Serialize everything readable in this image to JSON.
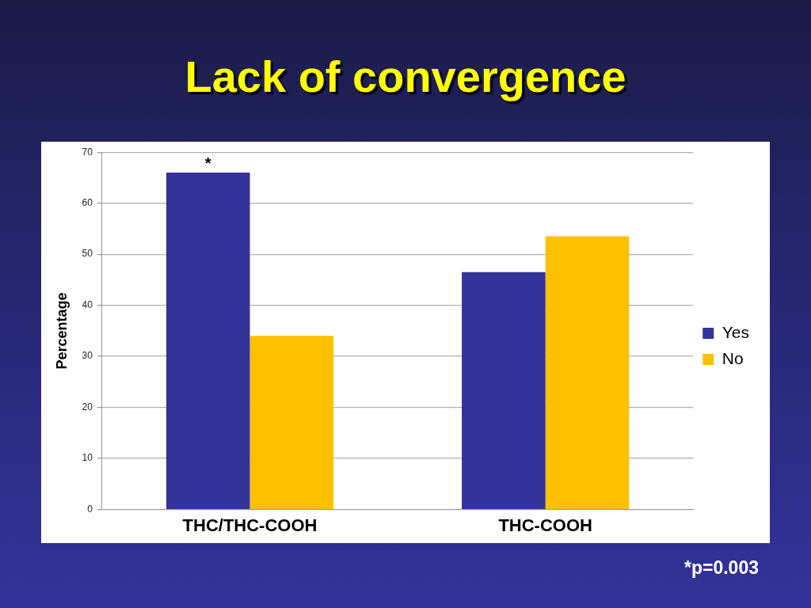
{
  "chart_data": {
    "type": "bar",
    "title": "Lack of convergence",
    "ylabel": "Percentage",
    "categories": [
      "THC/THC-COOH",
      "THC-COOH"
    ],
    "series": [
      {
        "name": "Yes",
        "color": "#333399",
        "values": [
          66,
          46.5
        ]
      },
      {
        "name": "No",
        "color": "#ffc000",
        "values": [
          34,
          53.5
        ]
      }
    ],
    "ylim": [
      0,
      70
    ],
    "yticks": [
      0,
      10,
      20,
      30,
      40,
      50,
      60,
      70
    ],
    "grid": "y",
    "legend": "right",
    "annotations": [
      {
        "text": "*",
        "x": "THC/THC-COOH",
        "y": 66
      },
      "*p=0.003"
    ]
  }
}
